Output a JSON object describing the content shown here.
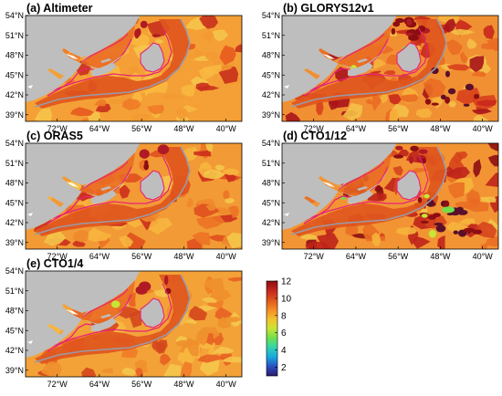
{
  "panels": [
    {
      "label": "(a) Altimeter",
      "variant": "altimeter"
    },
    {
      "label": "(b) GLORYS12v1",
      "variant": "glorys"
    },
    {
      "label": "(c) ORAS5",
      "variant": "oras"
    },
    {
      "label": "(d) CTO1/12",
      "variant": "cto12"
    },
    {
      "label": "(e) CTO1/4",
      "variant": "cto4"
    }
  ],
  "map": {
    "lon_ticks": [
      "72°W",
      "64°W",
      "56°W",
      "48°W",
      "40°W"
    ],
    "lon_values": [
      -72,
      -64,
      -56,
      -48,
      -40
    ],
    "lat_ticks": [
      "54°N",
      "51°N",
      "48°N",
      "45°N",
      "42°N",
      "39°N"
    ],
    "lat_values": [
      54,
      51,
      48,
      45,
      42,
      39
    ],
    "extent": {
      "lon": [
        -78,
        -37
      ],
      "lat": [
        38,
        54
      ]
    },
    "land_color": "#bebebe"
  },
  "colorbar": {
    "ticks": [
      "12",
      "10",
      "8",
      "6",
      "4",
      "2"
    ],
    "tick_values": [
      12,
      10,
      8,
      6,
      4,
      2
    ],
    "range": [
      1,
      12
    ],
    "colormap": [
      "#2b1a6b",
      "#2a4fc0",
      "#18a8e0",
      "#33d3b0",
      "#6fe04b",
      "#c9e535",
      "#f5c12e",
      "#f48a24",
      "#e0551c",
      "#c4261d",
      "#8c0e12"
    ]
  }
}
